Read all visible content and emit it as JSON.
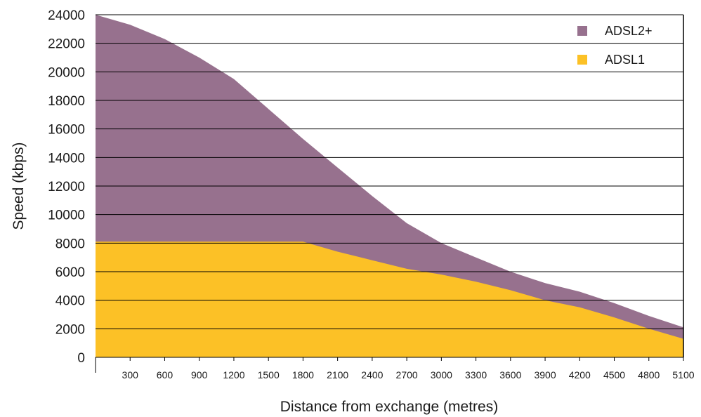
{
  "chart_data": {
    "type": "area",
    "title": "",
    "xlabel": "Distance from exchange (metres)",
    "ylabel": "Speed (kbps)",
    "x": [
      0,
      300,
      600,
      900,
      1200,
      1500,
      1800,
      2100,
      2400,
      2700,
      3000,
      3300,
      3600,
      3900,
      4200,
      4500,
      4800,
      5100
    ],
    "x_tick_labels": [
      "300",
      "600",
      "900",
      "1200",
      "1500",
      "1800",
      "2100",
      "2400",
      "2700",
      "3000",
      "3300",
      "3600",
      "3900",
      "4200",
      "4500",
      "4800",
      "5100"
    ],
    "xlim": [
      0,
      5100
    ],
    "ylim": [
      0,
      24000
    ],
    "y_ticks": [
      0,
      2000,
      4000,
      6000,
      8000,
      10000,
      12000,
      14000,
      16000,
      18000,
      20000,
      22000,
      24000
    ],
    "grid": "horizontal",
    "legend_position": "top-right",
    "series": [
      {
        "name": "ADSL2+",
        "color": "#97718e",
        "values": [
          24000,
          23300,
          22300,
          21000,
          19500,
          17400,
          15300,
          13300,
          11300,
          9400,
          8000,
          7000,
          6000,
          5200,
          4600,
          3800,
          2900,
          2100
        ]
      },
      {
        "name": "ADSL1",
        "color": "#fcc126",
        "values": [
          8100,
          8100,
          8100,
          8100,
          8100,
          8100,
          8100,
          7400,
          6800,
          6200,
          5800,
          5300,
          4700,
          4000,
          3500,
          2800,
          2000,
          1300
        ]
      }
    ]
  }
}
